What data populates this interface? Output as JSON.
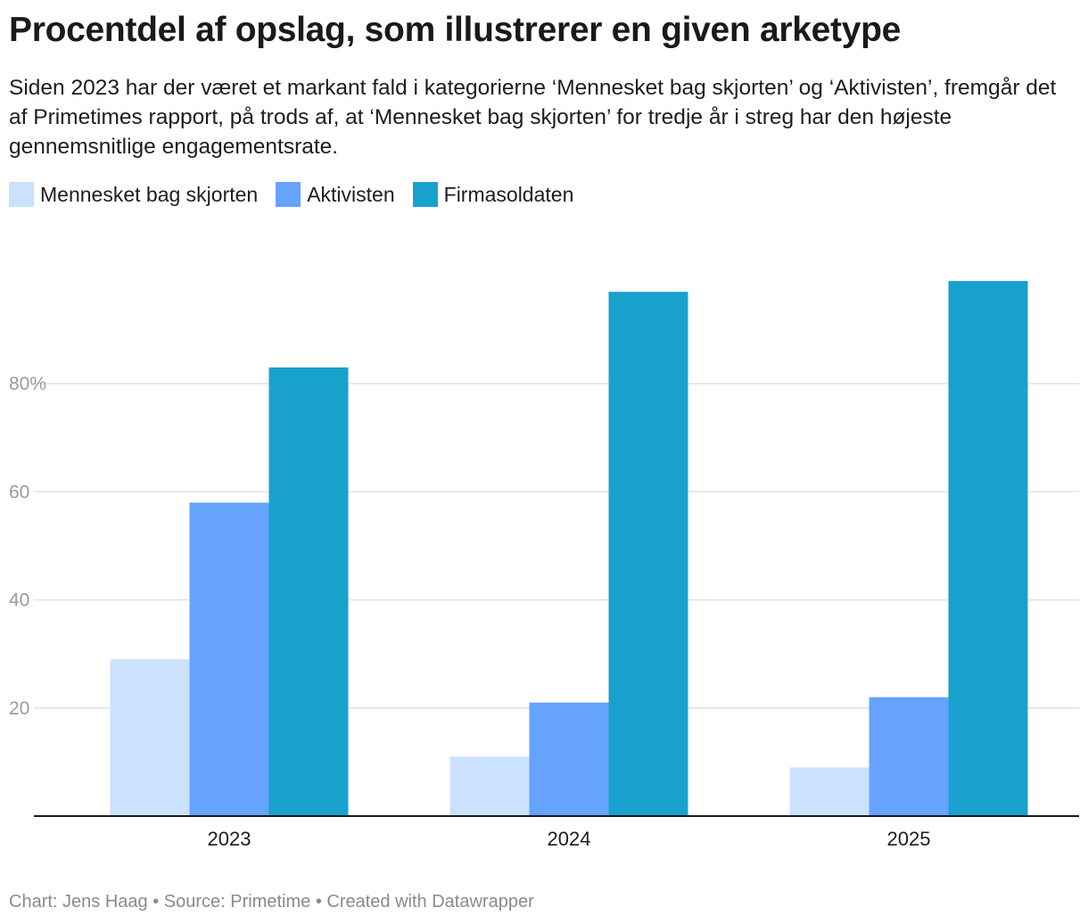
{
  "title": "Procentdel af opslag, som illustrerer en given arketype",
  "subtitle": "Siden 2023 har der været et markant fald i kategorierne ‘Mennesket bag skjorten’ og ‘Aktivisten’, fremgår det af Primetimes rapport, på trods af, at ‘Mennesket bag skjorten’ for tredje år i streg har den højeste gennemsnitlige engagementsrate.",
  "footer": {
    "chart_by": "Chart: Jens Haag",
    "source": "Source: Primetime",
    "created": "Created with Datawrapper",
    "separator": " • "
  },
  "chart_data": {
    "type": "bar",
    "title": "Procentdel af opslag, som illustrerer en given arketype",
    "categories": [
      "2023",
      "2024",
      "2025"
    ],
    "series": [
      {
        "name": "Mennesket bag skjorten",
        "color": "#cce1fd",
        "values": [
          29,
          11,
          9
        ]
      },
      {
        "name": "Aktivisten",
        "color": "#65a3fe",
        "values": [
          58,
          21,
          22
        ]
      },
      {
        "name": "Firmasoldaten",
        "color": "#19a1cd",
        "values": [
          83,
          97,
          99
        ]
      }
    ],
    "yticks": [
      20,
      40,
      60,
      80
    ],
    "ytick_labels": [
      "20",
      "40",
      "60",
      "80%"
    ],
    "ylim": [
      0,
      100
    ],
    "xlabel": "",
    "ylabel": "",
    "grid": true,
    "legend": "top-left"
  }
}
